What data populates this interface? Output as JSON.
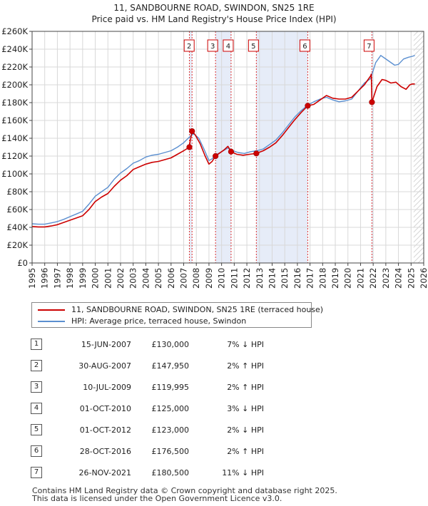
{
  "title_line1": "11, SANDBOURNE ROAD, SWINDON, SN25 1RE",
  "title_line2": "Price paid vs. HM Land Registry's House Price Index (HPI)",
  "legend": {
    "property": "11, SANDBOURNE ROAD, SWINDON, SN25 1RE (terraced house)",
    "hpi": "HPI: Average price, terraced house, Swindon"
  },
  "colors": {
    "property": "#cc0000",
    "hpi": "#5b8fd0",
    "shade": "#e6ecf8",
    "grid": "#d8d8d8"
  },
  "chart_data": {
    "type": "line",
    "title": "Price paid vs. HM Land Registry's House Price Index (HPI)",
    "xlabel": "",
    "ylabel": "",
    "xlim": [
      1995,
      2026
    ],
    "ylim": [
      0,
      260000
    ],
    "x_ticks": [
      1995,
      1996,
      1997,
      1998,
      1999,
      2000,
      2001,
      2002,
      2003,
      2004,
      2005,
      2006,
      2007,
      2008,
      2009,
      2010,
      2011,
      2012,
      2013,
      2014,
      2015,
      2016,
      2017,
      2018,
      2019,
      2020,
      2021,
      2022,
      2023,
      2024,
      2025,
      2026
    ],
    "y_ticks": [
      {
        "value": 0,
        "label": "£0"
      },
      {
        "value": 20000,
        "label": "£20K"
      },
      {
        "value": 40000,
        "label": "£40K"
      },
      {
        "value": 60000,
        "label": "£60K"
      },
      {
        "value": 80000,
        "label": "£80K"
      },
      {
        "value": 100000,
        "label": "£100K"
      },
      {
        "value": 120000,
        "label": "£120K"
      },
      {
        "value": 140000,
        "label": "£140K"
      },
      {
        "value": 160000,
        "label": "£160K"
      },
      {
        "value": 180000,
        "label": "£180K"
      },
      {
        "value": 200000,
        "label": "£200K"
      },
      {
        "value": 220000,
        "label": "£220K"
      },
      {
        "value": 240000,
        "label": "£240K"
      },
      {
        "value": 260000,
        "label": "£260K"
      }
    ],
    "shaded_ranges": [
      [
        2007.46,
        2007.66
      ],
      [
        2009.52,
        2010.75
      ],
      [
        2012.75,
        2016.82
      ],
      [
        2021.9,
        2022.0
      ]
    ],
    "hatched_from": 2025.2,
    "series": [
      {
        "name": "HPI: Average price, terraced house, Swindon",
        "x": [
          1995.0,
          1995.5,
          1996.0,
          1996.5,
          1997.0,
          1997.5,
          1998.0,
          1998.5,
          1999.0,
          1999.5,
          2000.0,
          2000.5,
          2001.0,
          2001.5,
          2002.0,
          2002.5,
          2003.0,
          2003.5,
          2004.0,
          2004.5,
          2005.0,
          2005.5,
          2006.0,
          2006.5,
          2007.0,
          2007.5,
          2007.8,
          2008.2,
          2008.6,
          2009.0,
          2009.25,
          2009.5,
          2010.0,
          2010.5,
          2010.9,
          2011.3,
          2011.8,
          2012.3,
          2012.8,
          2013.3,
          2013.8,
          2014.3,
          2014.8,
          2015.3,
          2015.8,
          2016.3,
          2016.8,
          2017.3,
          2017.8,
          2018.3,
          2018.8,
          2019.3,
          2019.8,
          2020.3,
          2020.8,
          2021.3,
          2021.8,
          2022.2,
          2022.6,
          2022.9,
          2023.3,
          2023.7,
          2024.0,
          2024.4,
          2024.8,
          2025.1,
          2025.3
        ],
        "values": [
          44000,
          43500,
          43500,
          45000,
          46500,
          49000,
          52000,
          55000,
          58000,
          66000,
          75000,
          80000,
          85000,
          94000,
          101000,
          106000,
          112000,
          115000,
          119000,
          121000,
          122000,
          124000,
          126000,
          130000,
          135000,
          142000,
          145000,
          140000,
          128000,
          115000,
          117000,
          121000,
          125000,
          129000,
          126000,
          124000,
          123000,
          125000,
          126000,
          128000,
          133000,
          138000,
          146000,
          155000,
          164000,
          171000,
          177000,
          181000,
          184000,
          186000,
          183000,
          181000,
          182000,
          184000,
          193000,
          202000,
          207000,
          225000,
          233000,
          230000,
          226000,
          222000,
          223000,
          229000,
          231000,
          232000,
          233000
        ]
      },
      {
        "name": "11, SANDBOURNE ROAD, SWINDON, SN25 1RE (terraced house)",
        "x": [
          1995.0,
          1995.5,
          1996.0,
          1996.5,
          1997.0,
          1997.5,
          1998.0,
          1998.5,
          1999.0,
          1999.5,
          2000.0,
          2000.5,
          2001.0,
          2001.5,
          2002.0,
          2002.5,
          2003.0,
          2003.5,
          2004.0,
          2004.5,
          2005.0,
          2005.5,
          2006.0,
          2006.5,
          2007.0,
          2007.45,
          2007.5,
          2007.66,
          2007.9,
          2008.3,
          2008.7,
          2009.0,
          2009.25,
          2009.52,
          2009.8,
          2010.2,
          2010.5,
          2010.75,
          2011.2,
          2011.7,
          2012.2,
          2012.75,
          2013.3,
          2013.8,
          2014.3,
          2014.8,
          2015.3,
          2015.8,
          2016.3,
          2016.82,
          2017.3,
          2017.8,
          2018.3,
          2018.8,
          2019.3,
          2019.8,
          2020.3,
          2020.8,
          2021.3,
          2021.8,
          2021.85,
          2021.9,
          2022.3,
          2022.7,
          2023.0,
          2023.4,
          2023.8,
          2024.2,
          2024.6,
          2024.9,
          2025.1,
          2025.3
        ],
        "values": [
          41000,
          40500,
          40500,
          41500,
          43000,
          45500,
          48000,
          50500,
          53000,
          60000,
          69000,
          74000,
          78000,
          86000,
          93000,
          98000,
          105000,
          108000,
          111000,
          113000,
          114000,
          116000,
          118000,
          122000,
          126000,
          130000,
          136000,
          147950,
          144000,
          134000,
          120000,
          111000,
          114000,
          119995,
          123000,
          127000,
          131000,
          125000,
          122000,
          121000,
          122000,
          123000,
          126000,
          130000,
          135000,
          143000,
          152000,
          161000,
          169000,
          176500,
          178000,
          183000,
          188000,
          185000,
          184000,
          184000,
          186000,
          193000,
          200000,
          210000,
          212000,
          180500,
          198000,
          206000,
          205000,
          202000,
          203000,
          198000,
          195000,
          200000,
          201000,
          201000
        ]
      }
    ],
    "sales": [
      {
        "num": "1",
        "date": "15-JUN-2007",
        "price": "£130,000",
        "hpi": "7% ↓ HPI",
        "x": 2007.45,
        "value": 130000
      },
      {
        "num": "2",
        "date": "30-AUG-2007",
        "price": "£147,950",
        "hpi": "2% ↑ HPI",
        "x": 2007.66,
        "value": 147950
      },
      {
        "num": "3",
        "date": "10-JUL-2009",
        "price": "£119,995",
        "hpi": "2% ↑ HPI",
        "x": 2009.52,
        "value": 119995
      },
      {
        "num": "4",
        "date": "01-OCT-2010",
        "price": "£125,000",
        "hpi": "3% ↓ HPI",
        "x": 2010.75,
        "value": 125000
      },
      {
        "num": "5",
        "date": "01-OCT-2012",
        "price": "£123,000",
        "hpi": "2% ↓ HPI",
        "x": 2012.75,
        "value": 123000
      },
      {
        "num": "6",
        "date": "28-OCT-2016",
        "price": "£176,500",
        "hpi": "2% ↑ HPI",
        "x": 2016.82,
        "value": 176500
      },
      {
        "num": "7",
        "date": "26-NOV-2021",
        "price": "£180,500",
        "hpi": "11% ↓ HPI",
        "x": 2021.9,
        "value": 180500
      }
    ],
    "chart_labels": [
      "2",
      "3",
      "4",
      "5",
      "6",
      "7"
    ]
  },
  "footer": {
    "line1": "Contains HM Land Registry data © Crown copyright and database right 2025.",
    "line2": "This data is licensed under the Open Government Licence v3.0."
  }
}
